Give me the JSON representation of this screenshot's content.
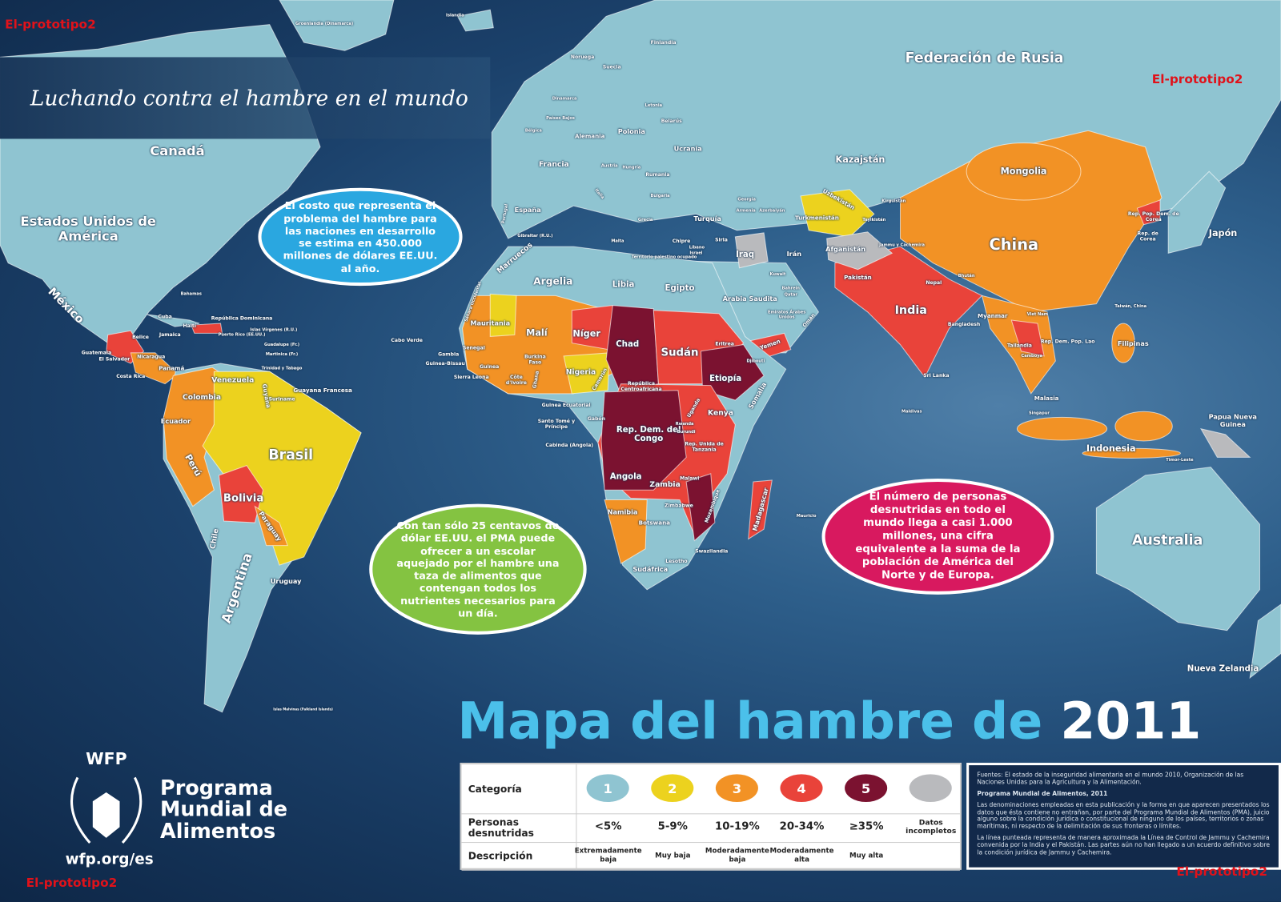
{
  "header": {
    "tagline": "Luchando contra el hambre en el mundo",
    "title_main": "Mapa del hambre de",
    "title_year": "2011"
  },
  "watermarks": [
    "El-prototipo2",
    "El-prototipo2",
    "El-prototipo2",
    "El-prototipo2"
  ],
  "bubbles": [
    "El costo que representa el problema del hambre para las naciones en desarrollo se estima en 450.000 millones de dólares EE.UU. al año.",
    "Con tan sólo 25 centavos de dólar EE.UU. el PMA puede ofrecer a un escolar aquejado por el hambre una taza de alimentos que contengan todos los nutrientes necesarios para un día.",
    "El número de personas desnutridas en todo el mundo llega a casi 1.000 millones, una cifra equivalente a la suma de la población de América del Norte y de Europa."
  ],
  "map_labels": [
    "Federación de Rusia",
    "Canadá",
    "Estados Unidos de América",
    "México",
    "Brasil",
    "Bolivia",
    "Perú",
    "Colombia",
    "Venezuela",
    "Argentina",
    "Chile",
    "Paraguay",
    "Uruguay",
    "Ecuador",
    "Guyana",
    "Suriname",
    "Guayana Francesa",
    "Cuba",
    "Haití",
    "República Dominicana",
    "Jamaica",
    "Belice",
    "Guatemala",
    "El Salvador",
    "Nicaragua",
    "Costa Rica",
    "Panamá",
    "Bahamas",
    "Puerto Rico (EE.UU.)",
    "Islas Vírgenes (R.U.)",
    "Guadalupe (Fr.)",
    "Martinica (Fr.)",
    "Trinidad y Tabago",
    "Cabo Verde",
    "Mauritania",
    "Malí",
    "Níger",
    "Chad",
    "Sudán",
    "Etiopía",
    "Eritrea",
    "Yemen",
    "Somalia",
    "Kenya",
    "Nigeria",
    "Senegal",
    "Gambia",
    "Guinea-Bissau",
    "Guinea",
    "Sierra Leona",
    "Burkina Faso",
    "Ghana",
    "Côte d'Ivoire",
    "República Centroafricana",
    "Camerún",
    "Guinea Ecuatorial",
    "Santo Tomé y Príncipe",
    "Gabón",
    "Cabinda (Angola)",
    "Rep. Dem. del Congo",
    "Uganda",
    "Rwanda",
    "Burundi",
    "Rep. Unida de Tanzanía",
    "Angola",
    "Zambia",
    "Malawi",
    "Mozambique",
    "Zimbabwe",
    "Namibia",
    "Botswana",
    "Madagascar",
    "Mauricio",
    "Swazilandia",
    "Lesotho",
    "Sudáfrica",
    "Argelia",
    "Libia",
    "Egipto",
    "Marruecos",
    "Sáhara Occidental",
    "Gibraltar (R.U.)",
    "Malta",
    "Chipre",
    "Siria",
    "Líbano",
    "Israel",
    "Territorio palestino ocupado",
    "Iraq",
    "Kuwait",
    "Arabia Saudita",
    "Bahrein",
    "Qatar",
    "Emiratos Árabes Unidos",
    "Omán",
    "Djibouti",
    "Irán",
    "Turquía",
    "Georgia",
    "Armenia",
    "Azerbaiyán",
    "Kazajstán",
    "Uzbekistán",
    "Turkmenistán",
    "Kirguistán",
    "Tayikistán",
    "Afganistán",
    "Pakistán",
    "Jammu y Cachemira",
    "India",
    "Nepal",
    "Bhután",
    "Bangladesh",
    "Sri Lanka",
    "Maldivas",
    "Myanmar",
    "China",
    "Mongolia",
    "Japón",
    "Rep. Pop. Dem. de Corea",
    "Rep. de Corea",
    "Taiwán, China",
    "Viet Nam",
    "Tailandia",
    "Camboya",
    "Rep. Dem. Pop. Lao",
    "Filipinas",
    "Malasia",
    "Singapur",
    "Indonesia",
    "Timor-Leste",
    "Papua Nueva Guinea",
    "Australia",
    "Nueva Zelandia",
    "Islas Malvinas (Falkland Islands)",
    "Groenlandia (Dinamarca)",
    "Islandia",
    "Noruega",
    "Suecia",
    "Finlandia",
    "Dinamarca",
    "Letonia",
    "Belarús",
    "Polonia",
    "Alemania",
    "Países Bajos",
    "Bélgica",
    "Francia",
    "España",
    "Portugal",
    "Italia",
    "Ucrania",
    "Rumania",
    "Hungría",
    "Austria",
    "Bulgaria",
    "Grecia"
  ],
  "logo": {
    "acronym": "WFP",
    "name_lines": [
      "Programa",
      "Mundial de",
      "Alimentos"
    ],
    "url": "wfp.org/es"
  },
  "legend": {
    "row_labels": [
      "Categoría",
      "Personas desnutridas",
      "Descripción"
    ],
    "categories": [
      {
        "label": "1",
        "color": "#8fc4d1",
        "range": "<5%",
        "description": "Extremadamente baja"
      },
      {
        "label": "2",
        "color": "#ecd21e",
        "range": "5-9%",
        "description": "Muy baja"
      },
      {
        "label": "3",
        "color": "#f29225",
        "range": "10-19%",
        "description": "Moderadamente baja"
      },
      {
        "label": "4",
        "color": "#e9433a",
        "range": "20-34%",
        "description": "Moderadamente alta"
      },
      {
        "label": "5",
        "color": "#7b1230",
        "range": "≥35%",
        "description": "Muy alta"
      },
      {
        "color": "#b9babd",
        "range": "Datos incompletos"
      }
    ]
  },
  "sources": {
    "fuentes": "Fuentes: El estado de la inseguridad alimentaria en el mundo 2010, Organización de las Naciones Unidas para la Agricultura y la Alimentación.",
    "publisher": "Programa Mundial de Alimentos, 2011",
    "disclaimer": "Las denominaciones empleadas en esta publicación y la forma en que aparecen presentados los datos que ésta contiene no entrañan, por parte del Programa Mundial de Alimentos (PMA), juicio alguno sobre la condición jurídica o constitucional de ninguno de los países, territorios o zonas marítimas, ni respecto de la delimitación de sus fronteras o límites.",
    "note": "La línea punteada representa de manera aproximada la Línea de Control de Jammu y Cachemira convenida por la India y el Pakistán. Las partes aún no han llegado a un acuerdo definitivo sobre la condición jurídica de Jammu y Cachemira."
  }
}
